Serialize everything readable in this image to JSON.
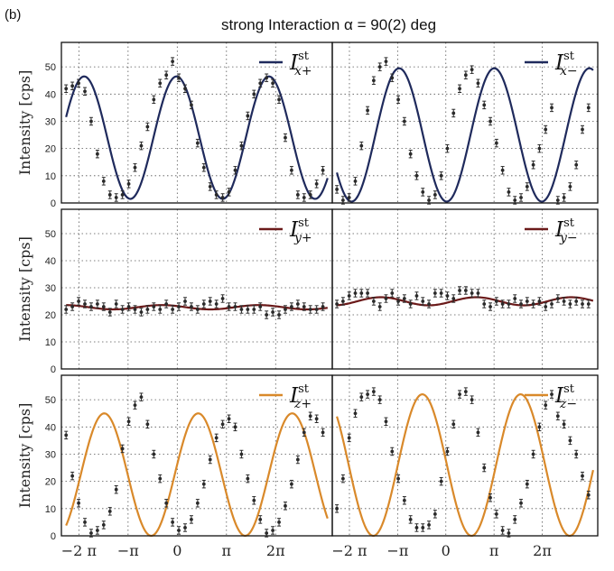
{
  "panel_label": "(b)",
  "figure_title": "strong Interaction α = 90(2) deg",
  "y_axis_label": "Intensity [cps]",
  "x_tick_labels": [
    "−2 π",
    "−π",
    "0",
    "π",
    "2π"
  ],
  "y_tick_labels": [
    "0",
    "10",
    "20",
    "30",
    "40",
    "50"
  ],
  "colors": {
    "x_series": "#1f2a5c",
    "y_series": "#6b1a1a",
    "z_series": "#d9892a",
    "points": "#2a2a2a",
    "grid": "#555555"
  },
  "chart_data": [
    {
      "type": "scatter",
      "panel": "top-left",
      "legend": {
        "main": "I",
        "sup": "st",
        "sub": "x+"
      },
      "legend_position": "top-right",
      "xlim": [
        -7.4,
        9.9
      ],
      "ylim": [
        0,
        59
      ],
      "fit": {
        "offset": 24,
        "amplitude": 22.5,
        "period": 5.9,
        "phase": 0.05
      },
      "x": [
        -7.1,
        -6.7,
        -6.3,
        -5.9,
        -5.5,
        -5.1,
        -4.7,
        -4.3,
        -3.9,
        -3.5,
        -3.1,
        -2.7,
        -2.3,
        -1.9,
        -1.5,
        -1.1,
        -0.7,
        -0.3,
        0.1,
        0.5,
        0.9,
        1.3,
        1.7,
        2.1,
        2.5,
        2.9,
        3.3,
        3.7,
        4.1,
        4.5,
        4.9,
        5.3,
        5.7,
        6.1,
        6.5,
        6.9,
        7.3,
        7.7,
        8.1,
        8.5,
        8.9,
        9.3
      ],
      "y": [
        42,
        43,
        44,
        41,
        30,
        18,
        8,
        3,
        2,
        3,
        7,
        13,
        21,
        28,
        38,
        44,
        47,
        52,
        46,
        42,
        36,
        22,
        13,
        6,
        3,
        2,
        4,
        12,
        21,
        32,
        40,
        44,
        46,
        44,
        38,
        24,
        12,
        3,
        2,
        3,
        7,
        12
      ]
    },
    {
      "type": "scatter",
      "panel": "top-right",
      "legend": {
        "main": "I",
        "sup": "st",
        "sub": "x−"
      },
      "legend_position": "top-right",
      "xlim": [
        -7.4,
        9.9
      ],
      "ylim": [
        0,
        59
      ],
      "fit": {
        "offset": 25,
        "amplitude": 24.5,
        "period": 6.2,
        "phase": -3.2
      },
      "x": [
        -7.1,
        -6.7,
        -6.3,
        -5.9,
        -5.5,
        -5.1,
        -4.7,
        -4.3,
        -3.9,
        -3.5,
        -3.1,
        -2.7,
        -2.3,
        -1.9,
        -1.5,
        -1.1,
        -0.7,
        -0.3,
        0.1,
        0.5,
        0.9,
        1.3,
        1.7,
        2.1,
        2.5,
        2.9,
        3.3,
        3.7,
        4.1,
        4.5,
        4.9,
        5.3,
        5.7,
        6.1,
        6.5,
        6.9,
        7.3,
        7.7,
        8.1,
        8.5,
        8.9,
        9.3
      ],
      "y": [
        5,
        1,
        2,
        8,
        21,
        34,
        45,
        50,
        52,
        46,
        38,
        30,
        18,
        10,
        4,
        1,
        3,
        10,
        20,
        33,
        42,
        47,
        49,
        44,
        36,
        30,
        22,
        12,
        4,
        1,
        2,
        6,
        14,
        20,
        27,
        35,
        1,
        2,
        6,
        14,
        27,
        35
      ]
    },
    {
      "type": "scatter",
      "panel": "middle-left",
      "legend": {
        "main": "I",
        "sup": "st",
        "sub": "y+"
      },
      "legend_position": "top-right",
      "xlim": [
        -7.4,
        9.9
      ],
      "ylim": [
        0,
        59
      ],
      "fit": {
        "offset": 22.8,
        "amplitude": 0.8,
        "period": 6.2,
        "phase": 1.0
      },
      "x": [
        -7.1,
        -6.7,
        -6.3,
        -5.9,
        -5.5,
        -5.1,
        -4.7,
        -4.3,
        -3.9,
        -3.5,
        -3.1,
        -2.7,
        -2.3,
        -1.9,
        -1.5,
        -1.1,
        -0.7,
        -0.3,
        0.1,
        0.5,
        0.9,
        1.3,
        1.7,
        2.1,
        2.5,
        2.9,
        3.3,
        3.7,
        4.1,
        4.5,
        4.9,
        5.3,
        5.7,
        6.1,
        6.5,
        6.9,
        7.3,
        7.7,
        8.1,
        8.5,
        8.9,
        9.3
      ],
      "y": [
        22,
        23,
        25,
        24,
        23,
        24,
        23,
        21,
        24,
        22,
        23,
        22,
        21,
        22,
        23,
        22,
        24,
        22,
        23,
        25,
        23,
        22,
        24,
        25,
        24,
        26,
        23,
        23,
        22,
        22,
        22,
        23,
        20,
        21,
        20,
        22,
        23,
        24,
        23,
        22,
        22,
        23
      ]
    },
    {
      "type": "scatter",
      "panel": "middle-right",
      "legend": {
        "main": "I",
        "sup": "st",
        "sub": "y−"
      },
      "legend_position": "top-right",
      "xlim": [
        -7.4,
        9.9
      ],
      "ylim": [
        0,
        59
      ],
      "fit": {
        "offset": 25,
        "amplitude": 1.5,
        "period": 6.2,
        "phase": -2.0
      },
      "x": [
        -7.1,
        -6.7,
        -6.3,
        -5.9,
        -5.5,
        -5.1,
        -4.7,
        -4.3,
        -3.9,
        -3.5,
        -3.1,
        -2.7,
        -2.3,
        -1.9,
        -1.5,
        -1.1,
        -0.7,
        -0.3,
        0.1,
        0.5,
        0.9,
        1.3,
        1.7,
        2.1,
        2.5,
        2.9,
        3.3,
        3.7,
        4.1,
        4.5,
        4.9,
        5.3,
        5.7,
        6.1,
        6.5,
        6.9,
        7.3,
        7.7,
        8.1,
        8.5,
        8.9,
        9.3
      ],
      "y": [
        24,
        25,
        27,
        28,
        28,
        28,
        25,
        23,
        26,
        28,
        25,
        26,
        24,
        27,
        25,
        24,
        28,
        28,
        27,
        26,
        29,
        29,
        28,
        28,
        24,
        23,
        25,
        24,
        24,
        26,
        24,
        25,
        24,
        25,
        23,
        24,
        26,
        25,
        24,
        25,
        24,
        24
      ]
    },
    {
      "type": "scatter",
      "panel": "bottom-left",
      "legend": {
        "main": "I",
        "sup": "st",
        "sub": "z+"
      },
      "legend_position": "top-right",
      "xlim": [
        -7.4,
        9.9
      ],
      "ylim": [
        0,
        59
      ],
      "fit": {
        "offset": 22.5,
        "amplitude": 22.5,
        "period": 6.0,
        "phase": -1.4
      },
      "x": [
        -7.1,
        -6.7,
        -6.3,
        -5.9,
        -5.5,
        -5.1,
        -4.7,
        -4.3,
        -3.9,
        -3.5,
        -3.1,
        -2.7,
        -2.3,
        -1.9,
        -1.5,
        -1.1,
        -0.7,
        -0.3,
        0.1,
        0.5,
        0.9,
        1.3,
        1.7,
        2.1,
        2.5,
        2.9,
        3.3,
        3.7,
        4.1,
        4.5,
        4.9,
        5.3,
        5.7,
        6.1,
        6.5,
        6.9,
        7.3,
        7.7,
        8.1,
        8.5,
        8.9,
        9.3
      ],
      "y": [
        37,
        22,
        12,
        5,
        1,
        2,
        4,
        9,
        17,
        32,
        42,
        48,
        51,
        41,
        30,
        21,
        12,
        5,
        2,
        3,
        6,
        12,
        19,
        28,
        36,
        41,
        43,
        40,
        30,
        21,
        13,
        6,
        1,
        2,
        5,
        11,
        19,
        28,
        38,
        44,
        43,
        38
      ]
    },
    {
      "type": "scatter",
      "panel": "bottom-right",
      "legend": {
        "main": "I",
        "sup": "st",
        "sub": "z−"
      },
      "legend_position": "top-right",
      "xlim": [
        -7.4,
        9.9
      ],
      "ylim": [
        0,
        59
      ],
      "fit": {
        "offset": 26,
        "amplitude": 26,
        "period": 6.4,
        "phase": 1.5
      },
      "x": [
        -7.1,
        -6.7,
        -6.3,
        -5.9,
        -5.5,
        -5.1,
        -4.7,
        -4.3,
        -3.9,
        -3.5,
        -3.1,
        -2.7,
        -2.3,
        -1.9,
        -1.5,
        -1.1,
        -0.7,
        -0.3,
        0.1,
        0.5,
        0.9,
        1.3,
        1.7,
        2.1,
        2.5,
        2.9,
        3.3,
        3.7,
        4.1,
        4.5,
        4.9,
        5.3,
        5.7,
        6.1,
        6.5,
        6.9,
        7.3,
        7.7,
        8.1,
        8.5,
        8.9,
        9.3
      ],
      "y": [
        10,
        21,
        36,
        45,
        51,
        52,
        53,
        50,
        42,
        31,
        21,
        13,
        6,
        3,
        3,
        4,
        8,
        20,
        31,
        41,
        52,
        53,
        50,
        38,
        25,
        14,
        8,
        2,
        1,
        6,
        12,
        19,
        30,
        40,
        48,
        52,
        44,
        41,
        35,
        30,
        22,
        15
      ]
    }
  ]
}
